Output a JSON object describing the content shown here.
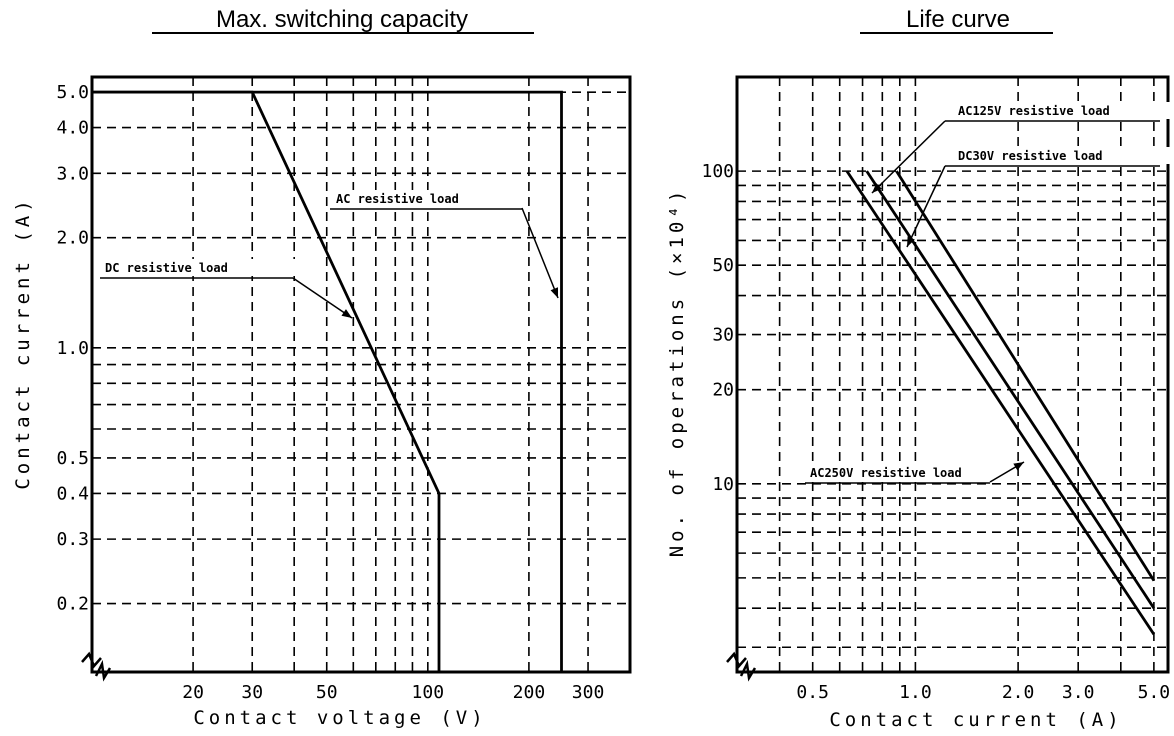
{
  "chart_data": [
    {
      "type": "line",
      "title": "Max. switching capacity",
      "xlabel": "Contact voltage (V)",
      "ylabel": "Contact current (A)",
      "x_scale": "log",
      "y_scale": "log",
      "xlim": [
        10,
        400
      ],
      "ylim": [
        0.13,
        5.5
      ],
      "x_ticks": [
        20,
        30,
        50,
        100,
        200,
        300
      ],
      "x_tick_labels": [
        "20",
        "30",
        "50",
        "100",
        "200",
        "300"
      ],
      "x_grid": [
        20,
        30,
        40,
        50,
        60,
        70,
        80,
        90,
        100,
        200,
        300
      ],
      "y_ticks": [
        0.2,
        0.3,
        0.4,
        0.5,
        1.0,
        2.0,
        3.0,
        4.0,
        5.0
      ],
      "y_tick_labels": [
        "0.2",
        "0.3",
        "0.4",
        "0.5",
        "1.0",
        "2.0",
        "3.0",
        "4.0",
        "5.0"
      ],
      "y_grid": [
        0.2,
        0.3,
        0.4,
        0.5,
        0.6,
        0.7,
        0.8,
        0.9,
        1.0,
        2.0,
        3.0,
        4.0,
        5.0
      ],
      "grid": true,
      "series": [
        {
          "name": "DC resistive load",
          "x": [
            10,
            30,
            108,
            108
          ],
          "y": [
            5.0,
            5.0,
            0.4,
            0.13
          ]
        },
        {
          "name": "AC resistive load",
          "x": [
            10,
            250,
            250
          ],
          "y": [
            5.0,
            5.0,
            0.13
          ]
        }
      ]
    },
    {
      "type": "line",
      "title": "Life curve",
      "xlabel": "Contact current (A)",
      "ylabel": "No. of operations (×10⁴)",
      "x_scale": "log",
      "y_scale": "log",
      "xlim": [
        0.3,
        5.5
      ],
      "ylim": [
        2.5,
        200
      ],
      "x_ticks": [
        0.5,
        1.0,
        2.0,
        3.0,
        5.0
      ],
      "x_tick_labels": [
        "0.5",
        "1.0",
        "2.0",
        "3.0",
        "5.0"
      ],
      "x_grid": [
        0.4,
        0.5,
        0.6,
        0.7,
        0.8,
        0.9,
        1.0,
        2.0,
        3.0,
        4.0,
        5.0
      ],
      "y_ticks": [
        10,
        20,
        30,
        50,
        100
      ],
      "y_tick_labels": [
        "10",
        "20",
        "30",
        "50",
        "100"
      ],
      "y_grid": [
        3,
        4,
        5,
        6,
        7,
        8,
        9,
        10,
        20,
        30,
        40,
        50,
        60,
        70,
        80,
        90,
        100
      ],
      "grid": true,
      "series": [
        {
          "name": "AC250V resistive load",
          "x": [
            0.63,
            5.0
          ],
          "y": [
            100,
            3.3
          ]
        },
        {
          "name": "DC30V resistive load",
          "x": [
            0.72,
            5.0
          ],
          "y": [
            100,
            4.0
          ]
        },
        {
          "name": "AC125V resistive load",
          "x": [
            0.88,
            5.0
          ],
          "y": [
            100,
            4.9
          ]
        }
      ]
    }
  ]
}
